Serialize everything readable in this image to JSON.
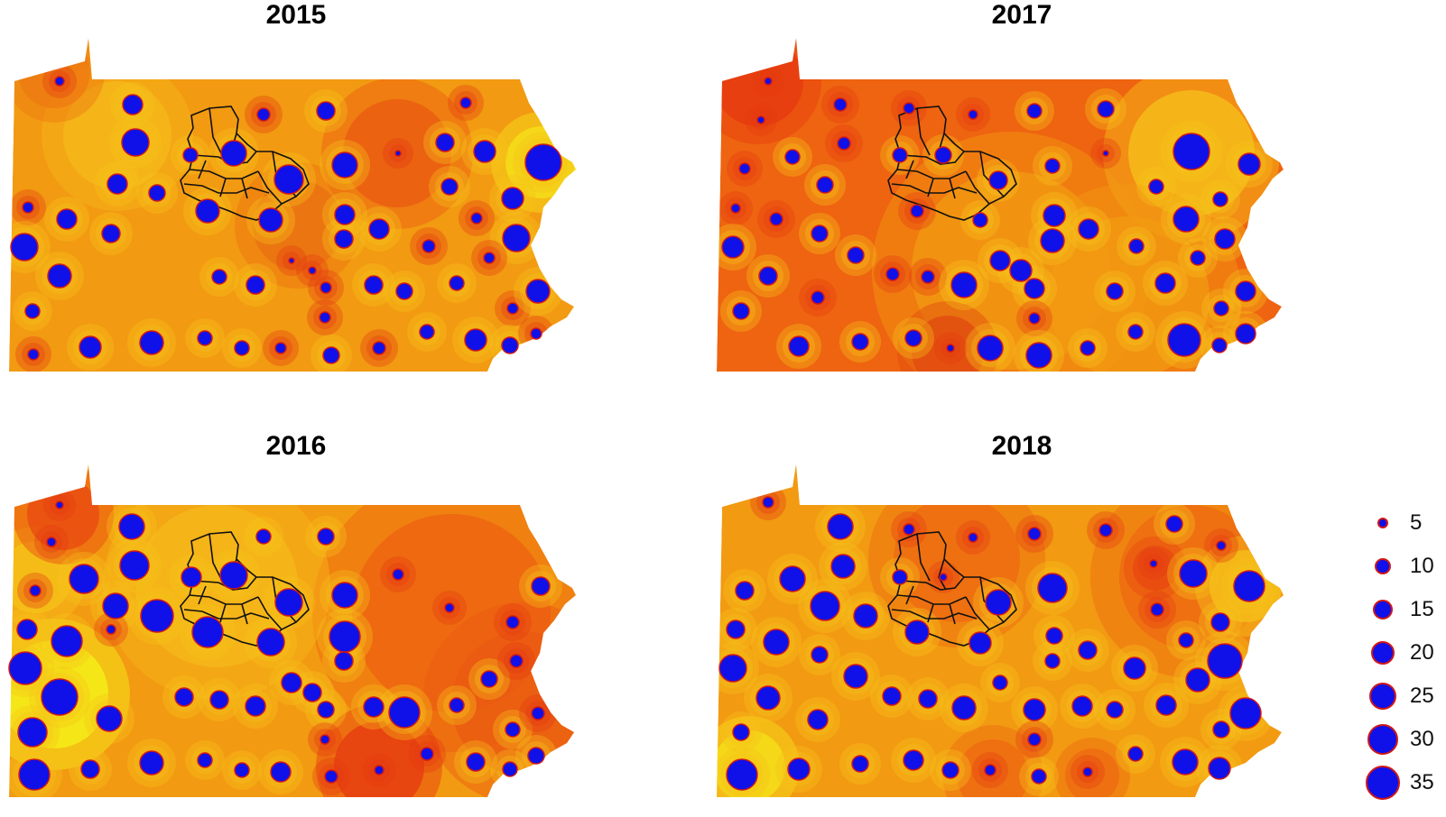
{
  "panels": [
    {
      "title": "2015"
    },
    {
      "title": "2017"
    },
    {
      "title": "2016"
    },
    {
      "title": "2018"
    }
  ],
  "colors": {
    "background": "#ffffff",
    "surface_base": "#f39a10",
    "surface_low": "#ee6210",
    "surface_high": "#f6c21a",
    "surface_peak": "#f6f11a",
    "surface_hot": "#e63a10",
    "station_fill": "#1010e8",
    "station_outline": "#d01818",
    "boundary": "#111111"
  },
  "legend": {
    "entries": [
      {
        "label": "5",
        "value": 5
      },
      {
        "label": "10",
        "value": 10
      },
      {
        "label": "15",
        "value": 15
      },
      {
        "label": "20",
        "value": 20
      },
      {
        "label": "25",
        "value": 25
      },
      {
        "label": "30",
        "value": 30
      },
      {
        "label": "35",
        "value": 35
      }
    ]
  }
}
